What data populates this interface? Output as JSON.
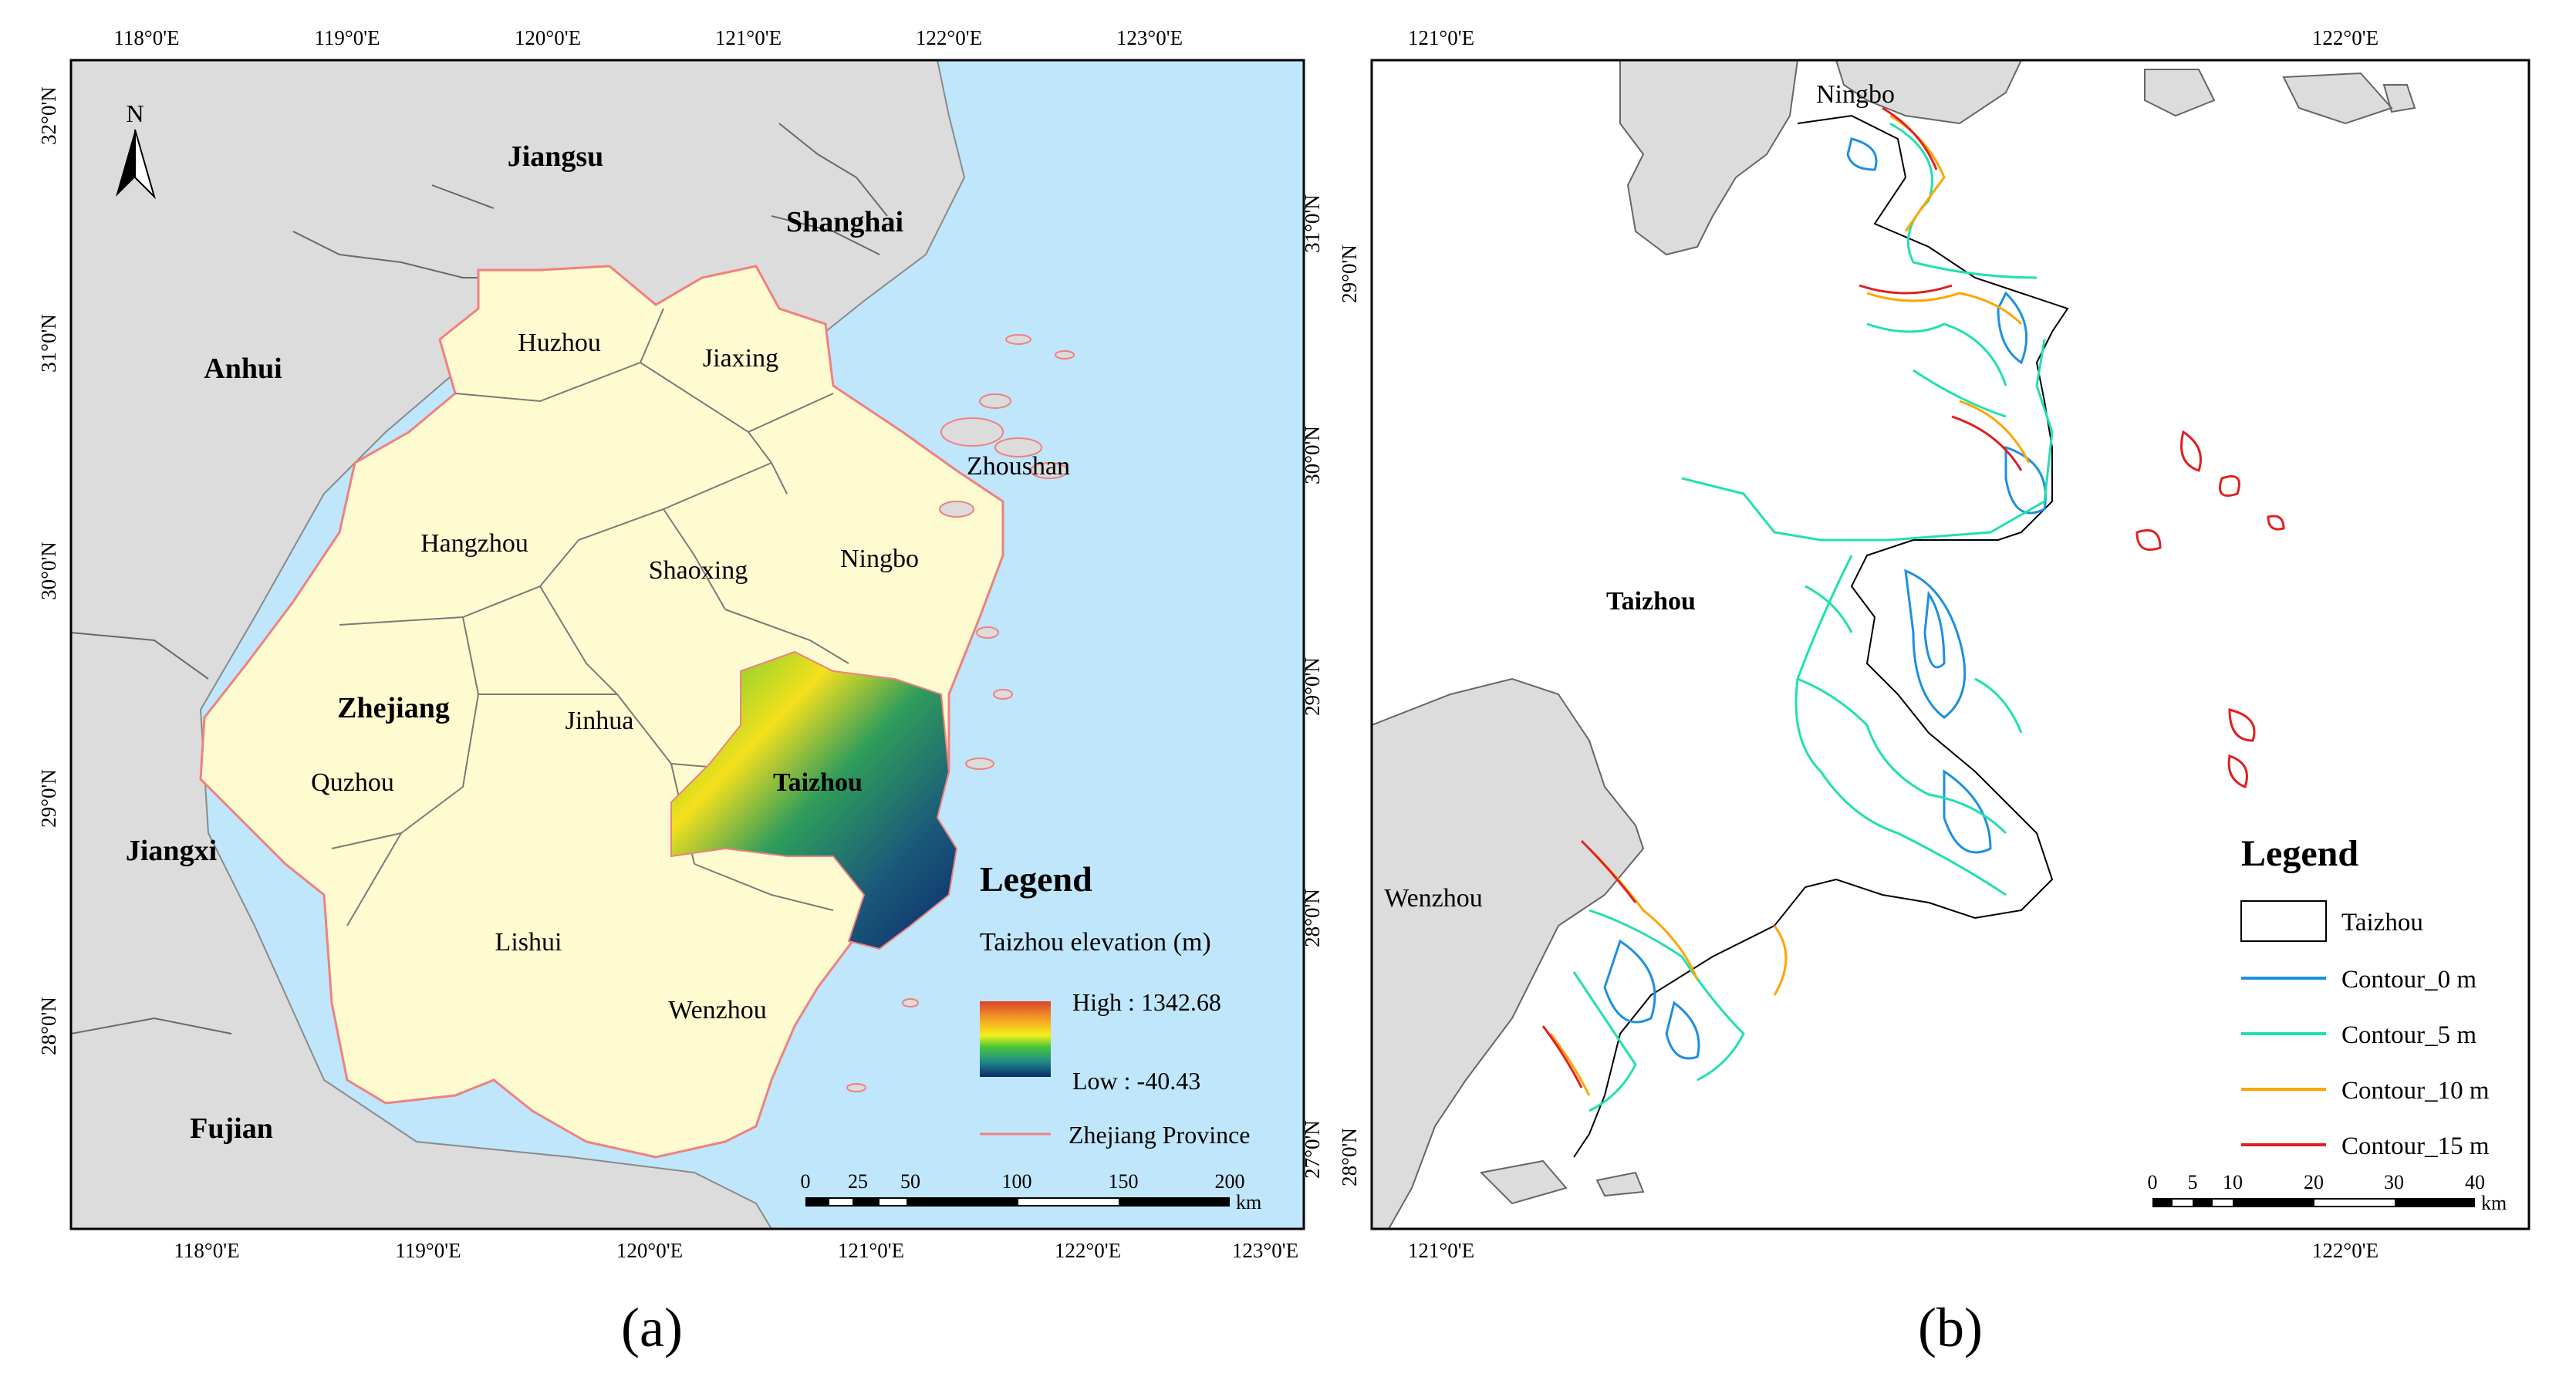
{
  "panel_a": {
    "caption": "(a)",
    "top_lon": [
      "118°0'E",
      "119°0'E",
      "120°0'E",
      "121°0'E",
      "122°0'E",
      "123°0'E"
    ],
    "bottom_lon": [
      "118°0'E",
      "119°0'E",
      "120°0'E",
      "121°0'E",
      "122°0'E",
      "123°0'E"
    ],
    "left_lat": [
      "32°0'N",
      "31°0'N",
      "30°0'N",
      "29°0'N",
      "28°0'N"
    ],
    "right_lat": [
      "31°0'N",
      "30°0'N",
      "29°0'N",
      "28°0'N",
      "27°0'N"
    ],
    "north": "N",
    "provinces": {
      "jiangsu": "Jiangsu",
      "shanghai": "Shanghai",
      "anhui": "Anhui",
      "zhejiang": "Zhejiang",
      "jiangxi": "Jiangxi",
      "fujian": "Fujian"
    },
    "cities": {
      "huzhou": "Huzhou",
      "jiaxing": "Jiaxing",
      "zhoushan": "Zhoushan",
      "hangzhou": "Hangzhou",
      "shaoxing": "Shaoxing",
      "ningbo": "Ningbo",
      "jinhua": "Jinhua",
      "quzhou": "Quzhou",
      "taizhou": "Taizhou",
      "lishui": "Lishui",
      "wenzhou": "Wenzhou"
    },
    "legend": {
      "title": "Legend",
      "subtitle": "Taizhou elevation (m)",
      "high": "High : 1342.68",
      "low": "Low : -40.43",
      "boundary": "Zhejiang Province"
    },
    "scale": {
      "ticks": [
        "0",
        "25",
        "50",
        "100",
        "150",
        "200"
      ],
      "unit": "km"
    },
    "colors": {
      "sea": "#bfe6fb",
      "land_other": "#dcdcdc",
      "zhejiang": "#fffbd0",
      "boundary": "#f08080",
      "elev_low": "#0b2a6a",
      "elev_high": "#d9432c"
    }
  },
  "panel_b": {
    "caption": "(b)",
    "top_lon": [
      "121°0'E",
      "122°0'E"
    ],
    "bottom_lon": [
      "121°0'E",
      "122°0'E"
    ],
    "left_lat": [
      "29°0'N",
      "28°0'N"
    ],
    "cities": {
      "ningbo": "Ningbo",
      "taizhou": "Taizhou",
      "wenzhou": "Wenzhou"
    },
    "legend": {
      "title": "Legend",
      "items": [
        {
          "label": "Taizhou",
          "color": "#000000"
        },
        {
          "label": "Contour_0 m",
          "color": "#1e90e0"
        },
        {
          "label": "Contour_5 m",
          "color": "#20e0b0"
        },
        {
          "label": "Contour_10 m",
          "color": "#ffa500"
        },
        {
          "label": "Contour_15 m",
          "color": "#e02020"
        }
      ]
    },
    "scale": {
      "ticks": [
        "0",
        "5",
        "10",
        "20",
        "30",
        "40"
      ],
      "unit": "km"
    }
  }
}
